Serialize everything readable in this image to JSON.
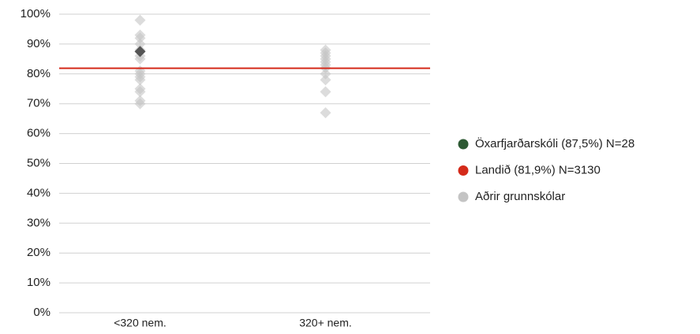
{
  "chart_data": {
    "type": "strip",
    "categories": [
      "<320 nem.",
      "320+ nem."
    ],
    "ylim": [
      0,
      100
    ],
    "yticks": [
      {
        "value": 0,
        "label": "0%"
      },
      {
        "value": 10,
        "label": "10%"
      },
      {
        "value": 20,
        "label": "20%"
      },
      {
        "value": 30,
        "label": "30%"
      },
      {
        "value": 40,
        "label": "40%"
      },
      {
        "value": 50,
        "label": "50%"
      },
      {
        "value": 60,
        "label": "60%"
      },
      {
        "value": 70,
        "label": "70%"
      },
      {
        "value": 80,
        "label": "80%"
      },
      {
        "value": 90,
        "label": "90%"
      },
      {
        "value": 100,
        "label": "100%"
      }
    ],
    "grid": true,
    "legend": "right",
    "series": [
      {
        "name": "Öxarfjarðarskóli (87,5%) N=28",
        "color": "#2e5a34",
        "marker_color": "#555555",
        "values": [
          [
            87.5
          ],
          []
        ]
      },
      {
        "name": "Landið (81,9%) N=3130",
        "color": "#d42a1a",
        "kind": "line",
        "value": 81.9
      },
      {
        "name": "Aðrir grunnskólar",
        "color": "#c4c4c4",
        "values": [
          [
            98,
            93,
            92,
            90,
            88,
            86,
            85,
            81,
            80,
            79,
            78,
            75,
            74,
            71,
            70
          ],
          [
            88,
            87,
            86,
            85,
            84,
            83,
            82,
            80,
            78,
            74,
            67
          ]
        ]
      }
    ]
  }
}
